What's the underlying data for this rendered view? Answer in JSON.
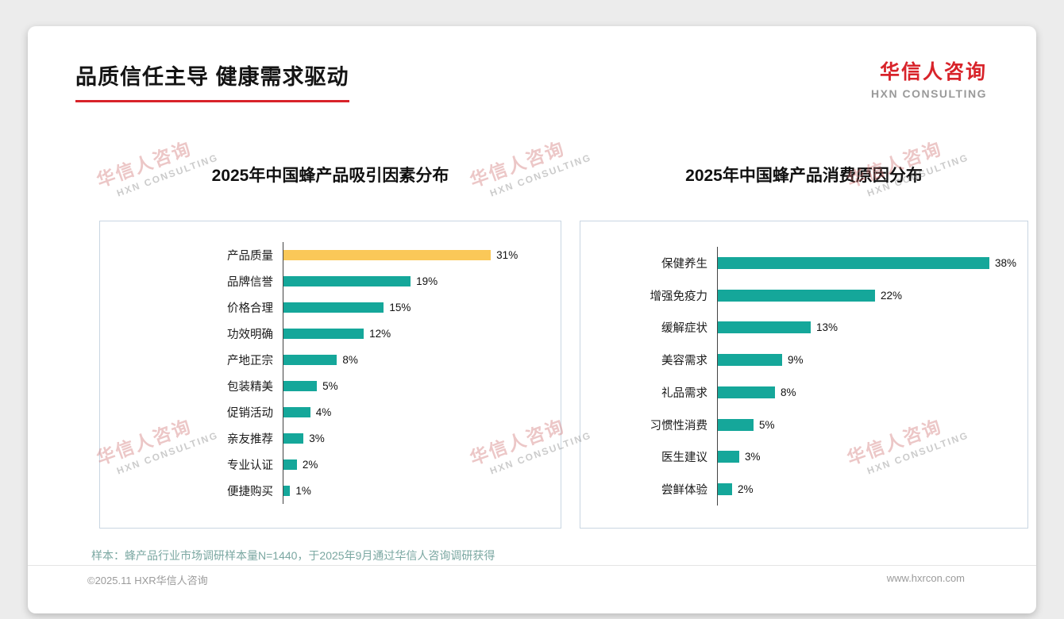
{
  "page": {
    "title": "品质信任主导 健康需求驱动",
    "logo": {
      "zh": "华信人咨询",
      "en": "HXN CONSULTING"
    },
    "watermark": {
      "zh": "华信人咨询",
      "en": "HXN CONSULTING"
    },
    "footnote": "样本：蜂产品行业市场调研样本量N=1440，于2025年9月通过华信人咨询调研获得",
    "copyright": "©2025.11 HXR华信人咨询",
    "website": "www.hxrcon.com"
  },
  "colors": {
    "teal": "#15a79a",
    "gold": "#fac858",
    "accent_red": "#d8232a"
  },
  "chart_data": [
    {
      "type": "bar",
      "orientation": "horizontal",
      "title": "2025年中国蜂产品吸引因素分布",
      "categories": [
        "产品质量",
        "品牌信誉",
        "价格合理",
        "功效明确",
        "产地正宗",
        "包装精美",
        "促销活动",
        "亲友推荐",
        "专业认证",
        "便捷购买"
      ],
      "values": [
        31,
        19,
        15,
        12,
        8,
        5,
        4,
        3,
        2,
        1
      ],
      "unit": "%",
      "xlim": [
        0,
        40
      ],
      "bar_color": "#15a79a",
      "highlight_index": 0,
      "highlight_color": "#fac858",
      "legend": false,
      "grid": false
    },
    {
      "type": "bar",
      "orientation": "horizontal",
      "title": "2025年中国蜂产品消费原因分布",
      "categories": [
        "保健养生",
        "增强免疫力",
        "缓解症状",
        "美容需求",
        "礼品需求",
        "习惯性消费",
        "医生建议",
        "尝鲜体验"
      ],
      "values": [
        38,
        22,
        13,
        9,
        8,
        5,
        3,
        2
      ],
      "unit": "%",
      "xlim": [
        0,
        42
      ],
      "bar_color": "#15a79a",
      "legend": false,
      "grid": false
    }
  ]
}
